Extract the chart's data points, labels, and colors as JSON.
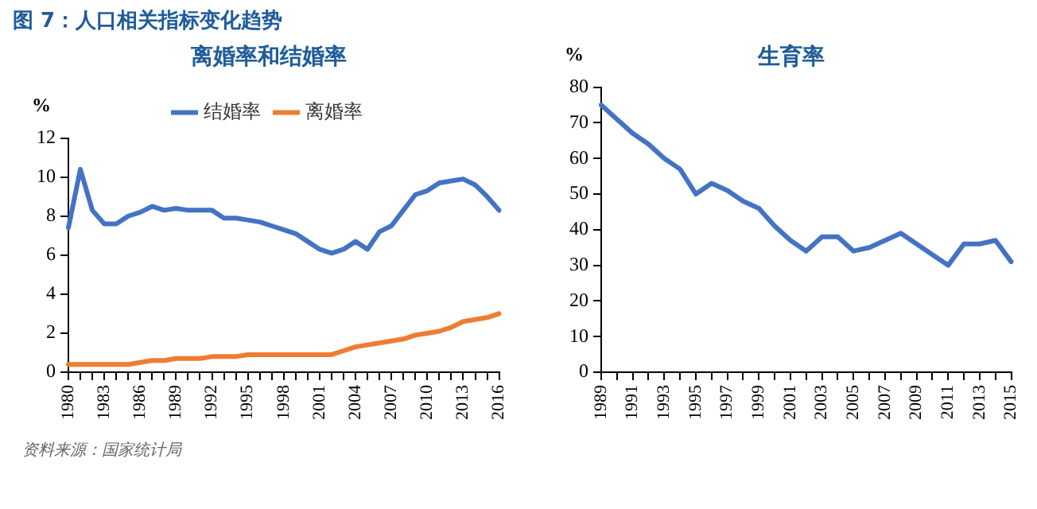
{
  "chart_data": [
    {
      "type": "line",
      "title": "离婚率和结婚率",
      "ylabel": "%",
      "annotations": [
        "图 7：人口相关指标变化趋势",
        "资料来源：国家统计局"
      ],
      "categories": [
        "1980",
        null,
        null,
        "1983",
        null,
        null,
        "1986",
        null,
        null,
        "1989",
        null,
        null,
        "1992",
        null,
        null,
        "1995",
        null,
        null,
        "1998",
        null,
        null,
        "2001",
        null,
        null,
        "2004",
        null,
        null,
        "2007",
        null,
        null,
        "2010",
        null,
        null,
        "2013",
        null,
        null,
        "2016"
      ],
      "series": [
        {
          "name": "结婚率",
          "color": "#4472c4",
          "values": [
            7.4,
            10.4,
            8.3,
            7.6,
            7.6,
            8.0,
            8.2,
            8.5,
            8.3,
            8.4,
            8.3,
            8.3,
            8.3,
            7.9,
            7.9,
            7.8,
            7.7,
            7.5,
            7.3,
            7.1,
            6.7,
            6.3,
            6.1,
            6.3,
            6.7,
            6.3,
            7.2,
            7.5,
            8.3,
            9.1,
            9.3,
            9.7,
            9.8,
            9.9,
            9.6,
            9.0,
            8.3
          ]
        },
        {
          "name": "离婚率",
          "color": "#ed7d31",
          "values": [
            0.4,
            0.4,
            0.4,
            0.4,
            0.4,
            0.4,
            0.5,
            0.6,
            0.6,
            0.7,
            0.7,
            0.7,
            0.8,
            0.8,
            0.8,
            0.9,
            0.9,
            0.9,
            0.9,
            0.9,
            0.9,
            0.9,
            0.9,
            1.1,
            1.3,
            1.4,
            1.5,
            1.6,
            1.7,
            1.9,
            2.0,
            2.1,
            2.3,
            2.6,
            2.7,
            2.8,
            3.0
          ]
        }
      ],
      "ylim": [
        0,
        12
      ],
      "yticks": [
        0,
        2,
        4,
        6,
        8,
        10,
        12
      ],
      "grid": false,
      "legend": "top",
      "line_style": "solid"
    },
    {
      "type": "line",
      "title": "生育率",
      "ylabel": "%",
      "categories": [
        "1989",
        null,
        "1991",
        null,
        "1993",
        null,
        "1995",
        null,
        "1997",
        null,
        "1999",
        null,
        "2001",
        null,
        "2003",
        null,
        "2005",
        null,
        "2007",
        null,
        "2009",
        null,
        "2011",
        null,
        "2013",
        null,
        "2015"
      ],
      "series": [
        {
          "color": "#4472c4",
          "values": [
            75,
            71,
            67,
            64,
            60,
            57,
            50,
            53,
            51,
            48,
            46,
            41,
            37,
            34,
            38,
            38,
            34,
            35,
            37,
            39,
            36,
            33,
            30,
            36,
            36,
            37,
            31
          ]
        }
      ],
      "ylim": [
        0,
        80
      ],
      "yticks": [
        0,
        10,
        20,
        30,
        40,
        50,
        60,
        70,
        80
      ],
      "grid": false,
      "legend": false,
      "line_style": "solid"
    }
  ]
}
